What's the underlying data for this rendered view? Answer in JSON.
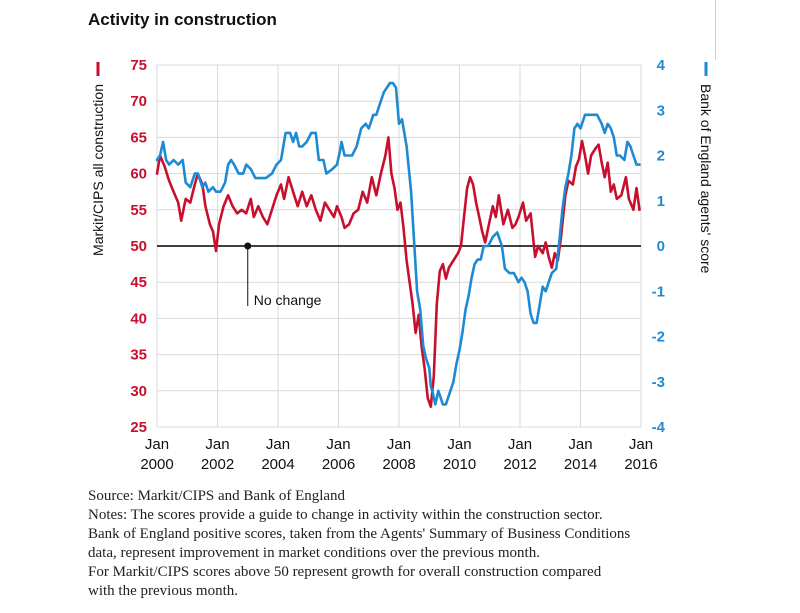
{
  "colors": {
    "red": "#c8102e",
    "blue": "#1f8ad4",
    "grid": "#d9d9d9",
    "baseline": "#000000"
  },
  "source": "Source: Markit/CIPS and Bank of England",
  "notes": [
    "Notes: The scores provide a guide to change in activity within the construction sector.",
    "Bank of England positive scores, taken from the Agents' Summary of Business Conditions",
    "data, represent improvement in market conditions over the previous month.",
    "For Markit/CIPS scores above 50 represent growth for overall construction compared",
    "with the previous month."
  ],
  "chart_data": {
    "type": "line",
    "title": "Activity in construction",
    "ylabel": "Markit/CIPS all construction",
    "y2label": "Bank of England agents' score",
    "ylim": [
      25,
      75
    ],
    "y2lim": [
      -4,
      4
    ],
    "yticks": [
      25,
      30,
      35,
      40,
      45,
      50,
      55,
      60,
      65,
      70,
      75
    ],
    "y2ticks": [
      -4,
      -3,
      -2,
      -1,
      0,
      1,
      2,
      3,
      4
    ],
    "xlim": [
      2000.0,
      2016.0
    ],
    "xticks": [
      {
        "x": 2000,
        "month": "Jan",
        "year": "2000"
      },
      {
        "x": 2002,
        "month": "Jan",
        "year": "2002"
      },
      {
        "x": 2004,
        "month": "Jan",
        "year": "2004"
      },
      {
        "x": 2006,
        "month": "Jan",
        "year": "2006"
      },
      {
        "x": 2008,
        "month": "Jan",
        "year": "2008"
      },
      {
        "x": 2010,
        "month": "Jan",
        "year": "2010"
      },
      {
        "x": 2012,
        "month": "Jan",
        "year": "2012"
      },
      {
        "x": 2014,
        "month": "Jan",
        "year": "2014"
      },
      {
        "x": 2016,
        "month": "Jan",
        "year": "2016"
      }
    ],
    "grid": true,
    "reference_line": {
      "value": 50,
      "axis": "left"
    },
    "annotation": {
      "text": "No change",
      "x": 2003.0,
      "y": 50
    },
    "series": [
      {
        "axis": "left",
        "color": "#c8102e",
        "points": [
          [
            2000.0,
            60.0
          ],
          [
            2000.1,
            62.5
          ],
          [
            2000.25,
            61.0
          ],
          [
            2000.4,
            59.0
          ],
          [
            2000.55,
            57.5
          ],
          [
            2000.7,
            56.0
          ],
          [
            2000.8,
            53.5
          ],
          [
            2000.95,
            56.5
          ],
          [
            2001.1,
            56.0
          ],
          [
            2001.25,
            58.5
          ],
          [
            2001.35,
            60.0
          ],
          [
            2001.5,
            58.5
          ],
          [
            2001.6,
            55.5
          ],
          [
            2001.75,
            53.0
          ],
          [
            2001.85,
            52.0
          ],
          [
            2001.95,
            49.3
          ],
          [
            2002.05,
            53.0
          ],
          [
            2002.2,
            55.5
          ],
          [
            2002.35,
            57.0
          ],
          [
            2002.5,
            55.5
          ],
          [
            2002.65,
            54.5
          ],
          [
            2002.8,
            55.0
          ],
          [
            2002.95,
            54.5
          ],
          [
            2003.1,
            56.5
          ],
          [
            2003.2,
            54.0
          ],
          [
            2003.35,
            55.5
          ],
          [
            2003.5,
            54.0
          ],
          [
            2003.65,
            53.0
          ],
          [
            2003.8,
            55.0
          ],
          [
            2003.95,
            57.0
          ],
          [
            2004.1,
            58.5
          ],
          [
            2004.2,
            56.5
          ],
          [
            2004.35,
            59.5
          ],
          [
            2004.5,
            57.5
          ],
          [
            2004.65,
            55.5
          ],
          [
            2004.8,
            57.5
          ],
          [
            2004.95,
            55.5
          ],
          [
            2005.1,
            57.0
          ],
          [
            2005.25,
            55.0
          ],
          [
            2005.4,
            53.5
          ],
          [
            2005.55,
            56.0
          ],
          [
            2005.7,
            55.0
          ],
          [
            2005.85,
            54.0
          ],
          [
            2005.95,
            55.5
          ],
          [
            2006.1,
            54.0
          ],
          [
            2006.2,
            52.5
          ],
          [
            2006.35,
            53.0
          ],
          [
            2006.5,
            54.5
          ],
          [
            2006.65,
            55.0
          ],
          [
            2006.8,
            57.5
          ],
          [
            2006.95,
            56.0
          ],
          [
            2007.1,
            59.5
          ],
          [
            2007.25,
            57.0
          ],
          [
            2007.4,
            60.0
          ],
          [
            2007.55,
            62.5
          ],
          [
            2007.65,
            65.0
          ],
          [
            2007.75,
            60.0
          ],
          [
            2007.85,
            58.0
          ],
          [
            2007.95,
            55.0
          ],
          [
            2008.05,
            56.0
          ],
          [
            2008.15,
            52.5
          ],
          [
            2008.25,
            48.0
          ],
          [
            2008.35,
            45.0
          ],
          [
            2008.45,
            42.0
          ],
          [
            2008.55,
            38.0
          ],
          [
            2008.65,
            40.5
          ],
          [
            2008.75,
            36.0
          ],
          [
            2008.85,
            33.0
          ],
          [
            2008.95,
            29.0
          ],
          [
            2009.05,
            27.8
          ],
          [
            2009.15,
            32.0
          ],
          [
            2009.25,
            42.0
          ],
          [
            2009.35,
            46.5
          ],
          [
            2009.45,
            47.5
          ],
          [
            2009.55,
            45.5
          ],
          [
            2009.65,
            47.0
          ],
          [
            2009.8,
            48.0
          ],
          [
            2009.95,
            49.0
          ],
          [
            2010.05,
            50.0
          ],
          [
            2010.15,
            54.0
          ],
          [
            2010.25,
            58.0
          ],
          [
            2010.35,
            59.5
          ],
          [
            2010.45,
            58.5
          ],
          [
            2010.55,
            56.0
          ],
          [
            2010.65,
            54.0
          ],
          [
            2010.75,
            52.0
          ],
          [
            2010.85,
            50.5
          ],
          [
            2010.95,
            52.5
          ],
          [
            2011.1,
            55.5
          ],
          [
            2011.2,
            54.0
          ],
          [
            2011.3,
            57.0
          ],
          [
            2011.45,
            53.0
          ],
          [
            2011.6,
            55.0
          ],
          [
            2011.75,
            52.5
          ],
          [
            2011.85,
            53.0
          ],
          [
            2011.95,
            54.0
          ],
          [
            2012.1,
            56.0
          ],
          [
            2012.2,
            53.5
          ],
          [
            2012.35,
            54.5
          ],
          [
            2012.5,
            48.5
          ],
          [
            2012.6,
            50.0
          ],
          [
            2012.75,
            49.0
          ],
          [
            2012.85,
            50.5
          ],
          [
            2012.95,
            48.5
          ],
          [
            2013.05,
            47.0
          ],
          [
            2013.15,
            49.0
          ],
          [
            2013.25,
            48.0
          ],
          [
            2013.35,
            51.0
          ],
          [
            2013.5,
            57.0
          ],
          [
            2013.6,
            59.0
          ],
          [
            2013.75,
            58.5
          ],
          [
            2013.85,
            61.0
          ],
          [
            2013.95,
            62.0
          ],
          [
            2014.05,
            64.5
          ],
          [
            2014.15,
            62.5
          ],
          [
            2014.25,
            60.0
          ],
          [
            2014.35,
            62.5
          ],
          [
            2014.5,
            63.5
          ],
          [
            2014.6,
            64.0
          ],
          [
            2014.7,
            61.5
          ],
          [
            2014.8,
            59.5
          ],
          [
            2014.9,
            61.5
          ],
          [
            2015.0,
            57.5
          ],
          [
            2015.1,
            58.5
          ],
          [
            2015.2,
            56.5
          ],
          [
            2015.35,
            57.0
          ],
          [
            2015.5,
            59.5
          ],
          [
            2015.6,
            56.5
          ],
          [
            2015.75,
            55.0
          ],
          [
            2015.85,
            58.0
          ],
          [
            2015.95,
            55.0
          ]
        ]
      },
      {
        "axis": "right",
        "color": "#1f8ad4",
        "points": [
          [
            2000.0,
            1.9
          ],
          [
            2000.1,
            2.0
          ],
          [
            2000.2,
            2.3
          ],
          [
            2000.3,
            1.9
          ],
          [
            2000.4,
            1.8
          ],
          [
            2000.55,
            1.9
          ],
          [
            2000.7,
            1.8
          ],
          [
            2000.85,
            1.9
          ],
          [
            2000.95,
            1.4
          ],
          [
            2001.1,
            1.3
          ],
          [
            2001.25,
            1.6
          ],
          [
            2001.35,
            1.6
          ],
          [
            2001.5,
            1.3
          ],
          [
            2001.6,
            1.4
          ],
          [
            2001.7,
            1.2
          ],
          [
            2001.85,
            1.3
          ],
          [
            2001.95,
            1.2
          ],
          [
            2002.1,
            1.2
          ],
          [
            2002.25,
            1.4
          ],
          [
            2002.35,
            1.8
          ],
          [
            2002.45,
            1.9
          ],
          [
            2002.55,
            1.8
          ],
          [
            2002.7,
            1.6
          ],
          [
            2002.85,
            1.6
          ],
          [
            2002.95,
            1.8
          ],
          [
            2003.1,
            1.7
          ],
          [
            2003.25,
            1.5
          ],
          [
            2003.4,
            1.5
          ],
          [
            2003.6,
            1.5
          ],
          [
            2003.8,
            1.6
          ],
          [
            2003.95,
            1.8
          ],
          [
            2004.1,
            1.9
          ],
          [
            2004.25,
            2.5
          ],
          [
            2004.4,
            2.5
          ],
          [
            2004.5,
            2.3
          ],
          [
            2004.6,
            2.5
          ],
          [
            2004.7,
            2.2
          ],
          [
            2004.8,
            2.2
          ],
          [
            2004.95,
            2.3
          ],
          [
            2005.1,
            2.5
          ],
          [
            2005.25,
            2.5
          ],
          [
            2005.35,
            1.9
          ],
          [
            2005.5,
            1.9
          ],
          [
            2005.6,
            1.6
          ],
          [
            2005.8,
            1.7
          ],
          [
            2005.95,
            1.8
          ],
          [
            2006.05,
            2.1
          ],
          [
            2006.1,
            2.3
          ],
          [
            2006.2,
            2.0
          ],
          [
            2006.3,
            2.0
          ],
          [
            2006.45,
            2.0
          ],
          [
            2006.6,
            2.2
          ],
          [
            2006.75,
            2.6
          ],
          [
            2006.9,
            2.7
          ],
          [
            2007.0,
            2.6
          ],
          [
            2007.15,
            2.9
          ],
          [
            2007.25,
            2.9
          ],
          [
            2007.35,
            3.1
          ],
          [
            2007.5,
            3.4
          ],
          [
            2007.6,
            3.5
          ],
          [
            2007.7,
            3.6
          ],
          [
            2007.8,
            3.6
          ],
          [
            2007.9,
            3.5
          ],
          [
            2008.0,
            2.7
          ],
          [
            2008.1,
            2.8
          ],
          [
            2008.25,
            2.2
          ],
          [
            2008.4,
            1.2
          ],
          [
            2008.5,
            0.1
          ],
          [
            2008.6,
            -1.0
          ],
          [
            2008.7,
            -1.4
          ],
          [
            2008.8,
            -2.2
          ],
          [
            2008.9,
            -2.5
          ],
          [
            2009.0,
            -2.7
          ],
          [
            2009.05,
            -3.1
          ],
          [
            2009.1,
            -3.2
          ],
          [
            2009.2,
            -3.5
          ],
          [
            2009.3,
            -3.2
          ],
          [
            2009.45,
            -3.5
          ],
          [
            2009.55,
            -3.5
          ],
          [
            2009.65,
            -3.3
          ],
          [
            2009.8,
            -3.0
          ],
          [
            2009.9,
            -2.6
          ],
          [
            2010.0,
            -2.3
          ],
          [
            2010.1,
            -1.9
          ],
          [
            2010.2,
            -1.4
          ],
          [
            2010.3,
            -1.1
          ],
          [
            2010.4,
            -0.7
          ],
          [
            2010.5,
            -0.4
          ],
          [
            2010.6,
            -0.3
          ],
          [
            2010.7,
            -0.3
          ],
          [
            2010.8,
            0.0
          ],
          [
            2010.95,
            0.0
          ],
          [
            2011.1,
            0.2
          ],
          [
            2011.25,
            0.3
          ],
          [
            2011.4,
            0.0
          ],
          [
            2011.5,
            -0.5
          ],
          [
            2011.65,
            -0.6
          ],
          [
            2011.8,
            -0.6
          ],
          [
            2011.95,
            -0.8
          ],
          [
            2012.05,
            -0.7
          ],
          [
            2012.15,
            -0.8
          ],
          [
            2012.25,
            -1.0
          ],
          [
            2012.35,
            -1.5
          ],
          [
            2012.45,
            -1.7
          ],
          [
            2012.55,
            -1.7
          ],
          [
            2012.65,
            -1.3
          ],
          [
            2012.75,
            -0.9
          ],
          [
            2012.85,
            -1.0
          ],
          [
            2012.95,
            -0.8
          ],
          [
            2013.05,
            -0.6
          ],
          [
            2013.2,
            -0.5
          ],
          [
            2013.3,
            0.1
          ],
          [
            2013.4,
            0.8
          ],
          [
            2013.5,
            1.3
          ],
          [
            2013.6,
            1.6
          ],
          [
            2013.7,
            2.0
          ],
          [
            2013.8,
            2.6
          ],
          [
            2013.9,
            2.7
          ],
          [
            2014.0,
            2.6
          ],
          [
            2014.15,
            2.9
          ],
          [
            2014.35,
            2.9
          ],
          [
            2014.55,
            2.9
          ],
          [
            2014.7,
            2.7
          ],
          [
            2014.8,
            2.5
          ],
          [
            2014.9,
            2.7
          ],
          [
            2015.0,
            2.6
          ],
          [
            2015.1,
            2.4
          ],
          [
            2015.2,
            2.0
          ],
          [
            2015.3,
            2.0
          ],
          [
            2015.45,
            1.9
          ],
          [
            2015.55,
            2.3
          ],
          [
            2015.65,
            2.2
          ],
          [
            2015.75,
            2.0
          ],
          [
            2015.85,
            1.8
          ],
          [
            2015.95,
            1.8
          ]
        ]
      }
    ]
  }
}
